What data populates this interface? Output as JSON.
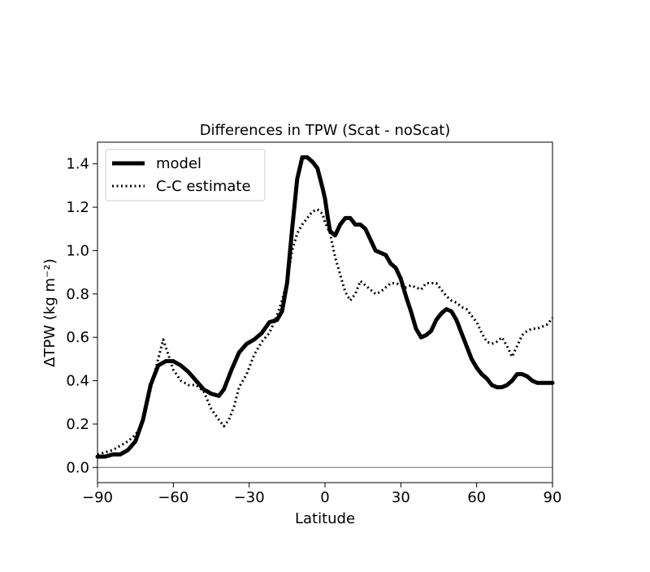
{
  "chart_data": {
    "type": "line",
    "title": "Differences in TPW (Scat - noScat)",
    "xlabel": "Latitude",
    "ylabel": "ΔTPW (kg m⁻²)",
    "xlim": [
      -90,
      90
    ],
    "ylim": [
      -0.07,
      1.5
    ],
    "xticks": [
      -90,
      -60,
      -30,
      0,
      30,
      60,
      90
    ],
    "xtick_labels": [
      "−90",
      "−60",
      "−30",
      "0",
      "30",
      "60",
      "90"
    ],
    "yticks": [
      0.0,
      0.2,
      0.4,
      0.6,
      0.8,
      1.0,
      1.2,
      1.4
    ],
    "ytick_labels": [
      "0.0",
      "0.2",
      "0.4",
      "0.6",
      "0.8",
      "1.0",
      "1.2",
      "1.4"
    ],
    "grid": false,
    "legend": "upper left",
    "zero_line": 0.0,
    "colors": {
      "model": "#000000",
      "cc": "#000000",
      "zero": "#808080"
    },
    "series": [
      {
        "name": "model",
        "style": "solid",
        "x": [
          -90,
          -87,
          -84,
          -81,
          -78,
          -75,
          -72,
          -69,
          -66,
          -63,
          -60,
          -57,
          -54,
          -51,
          -48,
          -45,
          -42,
          -40,
          -37,
          -34,
          -31,
          -28,
          -25,
          -22,
          -19,
          -17,
          -15,
          -13,
          -11,
          -9,
          -7,
          -5,
          -3,
          -1,
          0,
          1,
          2,
          4,
          6,
          8,
          10,
          12,
          14,
          16,
          18,
          20,
          22,
          24,
          26,
          28,
          30,
          32,
          34,
          36,
          38,
          40,
          42,
          44,
          46,
          48,
          50,
          52,
          54,
          56,
          58,
          60,
          62,
          64,
          66,
          68,
          70,
          72,
          74,
          76,
          78,
          80,
          82,
          84,
          86,
          88,
          90
        ],
        "y": [
          0.05,
          0.05,
          0.06,
          0.06,
          0.08,
          0.12,
          0.22,
          0.38,
          0.47,
          0.49,
          0.49,
          0.47,
          0.44,
          0.4,
          0.36,
          0.34,
          0.33,
          0.36,
          0.45,
          0.53,
          0.57,
          0.59,
          0.62,
          0.67,
          0.68,
          0.72,
          0.85,
          1.1,
          1.33,
          1.43,
          1.43,
          1.41,
          1.38,
          1.29,
          1.24,
          1.16,
          1.09,
          1.07,
          1.12,
          1.15,
          1.15,
          1.12,
          1.12,
          1.1,
          1.05,
          1.0,
          0.99,
          0.98,
          0.94,
          0.92,
          0.87,
          0.79,
          0.72,
          0.64,
          0.6,
          0.61,
          0.63,
          0.68,
          0.71,
          0.73,
          0.72,
          0.68,
          0.62,
          0.56,
          0.5,
          0.46,
          0.43,
          0.41,
          0.38,
          0.37,
          0.37,
          0.38,
          0.4,
          0.43,
          0.43,
          0.42,
          0.4,
          0.39,
          0.39,
          0.39,
          0.39
        ]
      },
      {
        "name": "C-C estimate",
        "style": "dotted",
        "x": [
          -90,
          -87,
          -84,
          -81,
          -78,
          -75,
          -72,
          -69,
          -66,
          -64,
          -62,
          -60,
          -57,
          -54,
          -51,
          -48,
          -45,
          -42,
          -40,
          -38,
          -36,
          -34,
          -31,
          -28,
          -25,
          -22,
          -19,
          -17,
          -15,
          -13,
          -11,
          -9,
          -7,
          -5,
          -3,
          -1,
          0,
          2,
          4,
          6,
          8,
          10,
          12,
          14,
          16,
          18,
          20,
          22,
          24,
          26,
          28,
          30,
          32,
          34,
          36,
          38,
          40,
          42,
          44,
          46,
          48,
          50,
          52,
          54,
          56,
          58,
          60,
          62,
          64,
          66,
          68,
          70,
          72,
          74,
          76,
          78,
          80,
          82,
          84,
          86,
          88,
          90
        ],
        "y": [
          0.06,
          0.07,
          0.08,
          0.1,
          0.12,
          0.15,
          0.21,
          0.36,
          0.5,
          0.59,
          0.52,
          0.45,
          0.4,
          0.38,
          0.38,
          0.35,
          0.27,
          0.22,
          0.19,
          0.22,
          0.28,
          0.37,
          0.43,
          0.52,
          0.58,
          0.62,
          0.7,
          0.77,
          0.86,
          1.0,
          1.08,
          1.12,
          1.15,
          1.18,
          1.19,
          1.17,
          1.13,
          1.08,
          0.97,
          0.89,
          0.81,
          0.77,
          0.8,
          0.86,
          0.84,
          0.82,
          0.8,
          0.81,
          0.83,
          0.85,
          0.85,
          0.84,
          0.83,
          0.84,
          0.83,
          0.82,
          0.85,
          0.85,
          0.85,
          0.82,
          0.79,
          0.77,
          0.76,
          0.74,
          0.73,
          0.7,
          0.67,
          0.62,
          0.58,
          0.57,
          0.58,
          0.6,
          0.56,
          0.51,
          0.56,
          0.61,
          0.63,
          0.64,
          0.64,
          0.65,
          0.66,
          0.69
        ]
      }
    ]
  }
}
